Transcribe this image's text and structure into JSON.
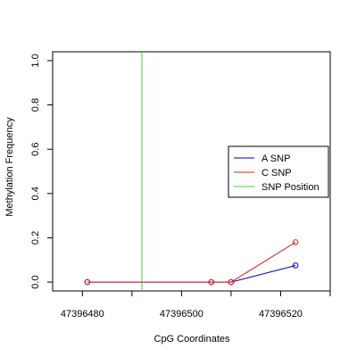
{
  "chart_data": {
    "type": "line",
    "xlabel": "CpG Coordinates",
    "ylabel": "Methylation Frequency",
    "xlim": [
      47396474,
      47396530
    ],
    "ylim": [
      -0.04,
      1.04
    ],
    "x_ticks": [
      47396480,
      47396500,
      47396520
    ],
    "x_tick_labels": [
      "47396480",
      "47396500",
      "47396520"
    ],
    "y_ticks": [
      0.0,
      0.2,
      0.4,
      0.6,
      0.8,
      1.0
    ],
    "y_tick_labels": [
      "0.0",
      "0.2",
      "0.4",
      "0.6",
      "0.8",
      "1.0"
    ],
    "grid": false,
    "legend_position": "right",
    "series": [
      {
        "name": "A SNP",
        "color": "#0000cc",
        "marker": "open-circle",
        "points": [
          {
            "x": 47396481,
            "y": 0.0
          },
          {
            "x": 47396506,
            "y": 0.0
          },
          {
            "x": 47396510,
            "y": 0.0
          },
          {
            "x": 47396523,
            "y": 0.075
          }
        ]
      },
      {
        "name": "C SNP",
        "color": "#dd2222",
        "marker": "open-circle",
        "points": [
          {
            "x": 47396481,
            "y": 0.0
          },
          {
            "x": 47396506,
            "y": 0.0
          },
          {
            "x": 47396510,
            "y": 0.0
          },
          {
            "x": 47396523,
            "y": 0.18
          }
        ]
      }
    ],
    "snp_position": {
      "name": "SNP Position",
      "x": 47396492,
      "color": "#33dd33"
    }
  }
}
